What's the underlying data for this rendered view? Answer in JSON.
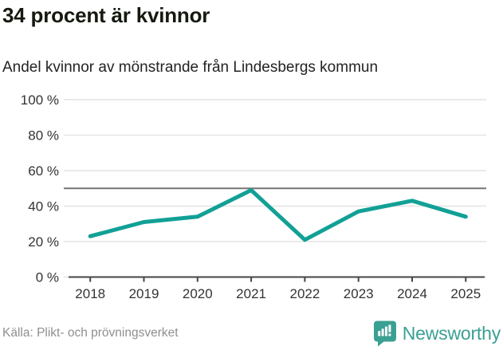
{
  "header": {
    "title": "34 procent är kvinnor",
    "subtitle": "Andel kvinnor av mönstrande från Lindesbergs kommun"
  },
  "chart_data": {
    "type": "line",
    "categories": [
      "2018",
      "2019",
      "2020",
      "2021",
      "2022",
      "2023",
      "2024",
      "2025"
    ],
    "series": [
      {
        "name": "Andel kvinnor av mönstrande",
        "values": [
          23,
          31,
          34,
          49,
          21,
          37,
          43,
          34
        ]
      }
    ],
    "unit": "%",
    "ylim": [
      0,
      100
    ],
    "yticks": [
      {
        "value": 0,
        "label": "0 %"
      },
      {
        "value": 20,
        "label": "20 %"
      },
      {
        "value": 40,
        "label": "40 %"
      },
      {
        "value": 60,
        "label": "60 %"
      },
      {
        "value": 80,
        "label": "80 %"
      },
      {
        "value": 100,
        "label": "100 %"
      }
    ],
    "reference_line": {
      "value": 50
    },
    "grid": "horizontal",
    "legend": "none",
    "line_color": "#12a096",
    "reference_color": "#757575",
    "grid_color": "#e4e4e4",
    "axis_color": "#454545"
  },
  "footer": {
    "source": "Källa: Plikt- och prövningsverket",
    "brand": "Newsworthy"
  },
  "icons": {
    "newsworthy_badge": "speech-bubble with bar chart and exclamation mark"
  },
  "colors": {
    "accent": "#12a096",
    "brand": "#3aa093",
    "title_text": "#15190f",
    "muted_text": "#8f8f8f"
  }
}
